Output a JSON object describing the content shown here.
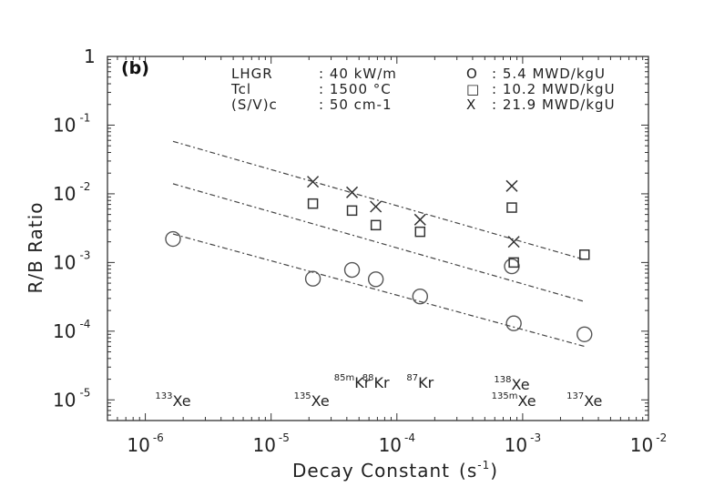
{
  "chart_data": {
    "type": "scatter",
    "panel_label": "(b)",
    "xlabel": {
      "text": "Decay Constant",
      "unit_base": "(s",
      "unit_exp": "-1",
      "unit_close": ")"
    },
    "ylabel": "R/B Ratio",
    "x_scale": "log",
    "y_scale": "log",
    "xlim": [
      5e-07,
      0.01
    ],
    "ylim": [
      5e-06,
      1
    ],
    "x_ticks": [
      {
        "value": 1e-06,
        "base": "10",
        "exp": "-6"
      },
      {
        "value": 1e-05,
        "base": "10",
        "exp": "-5"
      },
      {
        "value": 0.0001,
        "base": "10",
        "exp": "-4"
      },
      {
        "value": 0.001,
        "base": "10",
        "exp": "-3"
      },
      {
        "value": 0.01,
        "base": "10",
        "exp": "-2"
      }
    ],
    "y_ticks": [
      {
        "value": 1,
        "base": "1",
        "exp": ""
      },
      {
        "value": 0.1,
        "base": "10",
        "exp": "-1"
      },
      {
        "value": 0.01,
        "base": "10",
        "exp": "-2"
      },
      {
        "value": 0.001,
        "base": "10",
        "exp": "-3"
      },
      {
        "value": 0.0001,
        "base": "10",
        "exp": "-4"
      },
      {
        "value": 1e-05,
        "base": "10",
        "exp": "-5"
      }
    ],
    "conditions": [
      {
        "name": "LHGR",
        "value": ": 40 kW/m"
      },
      {
        "name": "Tcl",
        "value": ": 1500 °C"
      },
      {
        "name": "(S/V)c",
        "value": ": 50 cm-1"
      }
    ],
    "series": [
      {
        "marker": "circle",
        "symbol": "O",
        "label": ":   5.4 MWD/kgU",
        "x": [
          1.66e-06,
          2.15e-05,
          4.4e-05,
          6.8e-05,
          0.000153,
          0.00082,
          0.00085,
          0.0031
        ],
        "y": [
          0.0022,
          0.00058,
          0.00078,
          0.00057,
          0.00032,
          0.00088,
          0.00013,
          9e-05
        ],
        "fit": {
          "x": [
            1.66e-06,
            0.0031
          ],
          "y": [
            0.0026,
            6e-05
          ]
        }
      },
      {
        "marker": "square",
        "symbol": "□",
        "label": ": 10.2 MWD/kgU",
        "x": [
          2.15e-05,
          4.4e-05,
          6.8e-05,
          0.000153,
          0.00082,
          0.00085,
          0.0031
        ],
        "y": [
          0.0072,
          0.0057,
          0.0035,
          0.0028,
          0.0063,
          0.001,
          0.0013
        ],
        "fit": {
          "x": [
            1.66e-06,
            0.0031
          ],
          "y": [
            0.014,
            0.00027
          ]
        }
      },
      {
        "marker": "x",
        "symbol": "X",
        "label": ": 21.9 MWD/kgU",
        "x": [
          2.15e-05,
          4.4e-05,
          6.8e-05,
          0.000153,
          0.00082,
          0.00085
        ],
        "y": [
          0.015,
          0.0105,
          0.0065,
          0.0042,
          0.013,
          0.002
        ],
        "fit": {
          "x": [
            1.66e-06,
            0.0031
          ],
          "y": [
            0.058,
            0.0011
          ]
        }
      }
    ],
    "nuclides": [
      {
        "mass": "133",
        "symbol": "Xe",
        "x": 1.66e-06,
        "row": "low"
      },
      {
        "mass": "135",
        "symbol": "Xe",
        "x": 2.1e-05,
        "row": "low"
      },
      {
        "mass": "85m",
        "symbol": "Kr",
        "x": 4.4e-05,
        "row": "mid"
      },
      {
        "mass": "88",
        "symbol": "Kr",
        "x": 6.8e-05,
        "row": "mid"
      },
      {
        "mass": "87",
        "symbol": "Kr",
        "x": 0.000153,
        "row": "mid"
      },
      {
        "mass": "138",
        "symbol": "Xe",
        "x": 0.00082,
        "row": "high"
      },
      {
        "mass": "135m",
        "symbol": "Xe",
        "x": 0.00085,
        "row": "low"
      },
      {
        "mass": "137",
        "symbol": "Xe",
        "x": 0.0031,
        "row": "low"
      }
    ]
  }
}
